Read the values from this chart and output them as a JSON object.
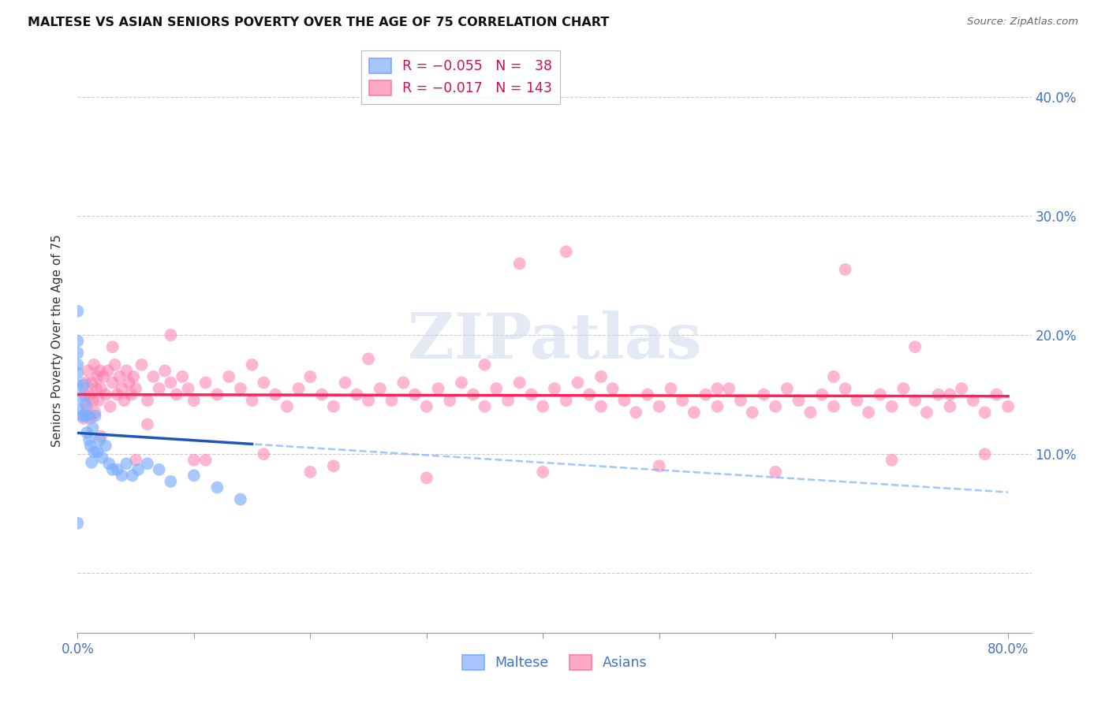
{
  "title": "MALTESE VS ASIAN SENIORS POVERTY OVER THE AGE OF 75 CORRELATION CHART",
  "source": "Source: ZipAtlas.com",
  "ylabel": "Seniors Poverty Over the Age of 75",
  "maltese_color": "#7aadff",
  "asians_color": "#ff7aaa",
  "maltese_trend_color": "#2255bb",
  "asians_trend_color": "#ff2255",
  "background_color": "#ffffff",
  "grid_color": "#cccccc",
  "xlim": [
    0.0,
    0.82
  ],
  "ylim": [
    -0.05,
    0.44
  ],
  "ytick_vals": [
    0.0,
    0.1,
    0.2,
    0.3,
    0.4
  ],
  "ytick_labels": [
    "",
    "10.0%",
    "20.0%",
    "30.0%",
    "40.0%"
  ],
  "xtick_vals": [
    0.0,
    0.1,
    0.2,
    0.3,
    0.4,
    0.5,
    0.6,
    0.7,
    0.8
  ],
  "maltese_x": [
    0.0,
    0.0,
    0.0,
    0.0,
    0.0,
    0.0,
    0.0,
    0.0,
    0.003,
    0.004,
    0.005,
    0.006,
    0.007,
    0.008,
    0.009,
    0.01,
    0.011,
    0.012,
    0.013,
    0.014,
    0.015,
    0.017,
    0.019,
    0.021,
    0.024,
    0.027,
    0.03,
    0.034,
    0.038,
    0.042,
    0.047,
    0.052,
    0.06,
    0.07,
    0.08,
    0.1,
    0.12,
    0.14
  ],
  "maltese_y": [
    0.22,
    0.195,
    0.185,
    0.175,
    0.168,
    0.158,
    0.138,
    0.042,
    0.148,
    0.132,
    0.158,
    0.132,
    0.142,
    0.118,
    0.132,
    0.112,
    0.107,
    0.093,
    0.122,
    0.102,
    0.132,
    0.102,
    0.112,
    0.097,
    0.107,
    0.092,
    0.087,
    0.087,
    0.082,
    0.092,
    0.082,
    0.087,
    0.092,
    0.087,
    0.077,
    0.082,
    0.072,
    0.062
  ],
  "asians_x": [
    0.005,
    0.006,
    0.007,
    0.008,
    0.009,
    0.01,
    0.011,
    0.012,
    0.013,
    0.014,
    0.015,
    0.016,
    0.017,
    0.018,
    0.019,
    0.02,
    0.022,
    0.024,
    0.026,
    0.028,
    0.03,
    0.032,
    0.034,
    0.036,
    0.038,
    0.04,
    0.042,
    0.044,
    0.046,
    0.048,
    0.05,
    0.055,
    0.06,
    0.065,
    0.07,
    0.075,
    0.08,
    0.085,
    0.09,
    0.095,
    0.1,
    0.11,
    0.12,
    0.13,
    0.14,
    0.15,
    0.16,
    0.17,
    0.18,
    0.19,
    0.2,
    0.21,
    0.22,
    0.23,
    0.24,
    0.25,
    0.26,
    0.27,
    0.28,
    0.29,
    0.3,
    0.31,
    0.32,
    0.33,
    0.34,
    0.35,
    0.36,
    0.37,
    0.38,
    0.39,
    0.4,
    0.41,
    0.42,
    0.43,
    0.44,
    0.45,
    0.46,
    0.47,
    0.48,
    0.49,
    0.5,
    0.51,
    0.52,
    0.53,
    0.54,
    0.55,
    0.56,
    0.57,
    0.58,
    0.59,
    0.6,
    0.61,
    0.62,
    0.63,
    0.64,
    0.65,
    0.66,
    0.67,
    0.68,
    0.69,
    0.7,
    0.71,
    0.72,
    0.73,
    0.74,
    0.75,
    0.76,
    0.77,
    0.78,
    0.79,
    0.8,
    0.42,
    0.38,
    0.66,
    0.72,
    0.78,
    0.05,
    0.1,
    0.2,
    0.3,
    0.4,
    0.5,
    0.6,
    0.7,
    0.03,
    0.08,
    0.15,
    0.25,
    0.35,
    0.45,
    0.55,
    0.65,
    0.75,
    0.02,
    0.06,
    0.11,
    0.16,
    0.22
  ],
  "asians_y": [
    0.13,
    0.15,
    0.16,
    0.14,
    0.17,
    0.15,
    0.13,
    0.16,
    0.145,
    0.175,
    0.135,
    0.155,
    0.165,
    0.145,
    0.17,
    0.155,
    0.165,
    0.15,
    0.17,
    0.14,
    0.16,
    0.175,
    0.15,
    0.165,
    0.155,
    0.145,
    0.17,
    0.16,
    0.15,
    0.165,
    0.155,
    0.175,
    0.145,
    0.165,
    0.155,
    0.17,
    0.16,
    0.15,
    0.165,
    0.155,
    0.145,
    0.16,
    0.15,
    0.165,
    0.155,
    0.145,
    0.16,
    0.15,
    0.14,
    0.155,
    0.165,
    0.15,
    0.14,
    0.16,
    0.15,
    0.145,
    0.155,
    0.145,
    0.16,
    0.15,
    0.14,
    0.155,
    0.145,
    0.16,
    0.15,
    0.14,
    0.155,
    0.145,
    0.16,
    0.15,
    0.14,
    0.155,
    0.145,
    0.16,
    0.15,
    0.14,
    0.155,
    0.145,
    0.135,
    0.15,
    0.14,
    0.155,
    0.145,
    0.135,
    0.15,
    0.14,
    0.155,
    0.145,
    0.135,
    0.15,
    0.14,
    0.155,
    0.145,
    0.135,
    0.15,
    0.14,
    0.155,
    0.145,
    0.135,
    0.15,
    0.14,
    0.155,
    0.145,
    0.135,
    0.15,
    0.14,
    0.155,
    0.145,
    0.135,
    0.15,
    0.14,
    0.27,
    0.26,
    0.255,
    0.19,
    0.1,
    0.095,
    0.095,
    0.085,
    0.08,
    0.085,
    0.09,
    0.085,
    0.095,
    0.19,
    0.2,
    0.175,
    0.18,
    0.175,
    0.165,
    0.155,
    0.165,
    0.15,
    0.115,
    0.125,
    0.095,
    0.1,
    0.09
  ]
}
